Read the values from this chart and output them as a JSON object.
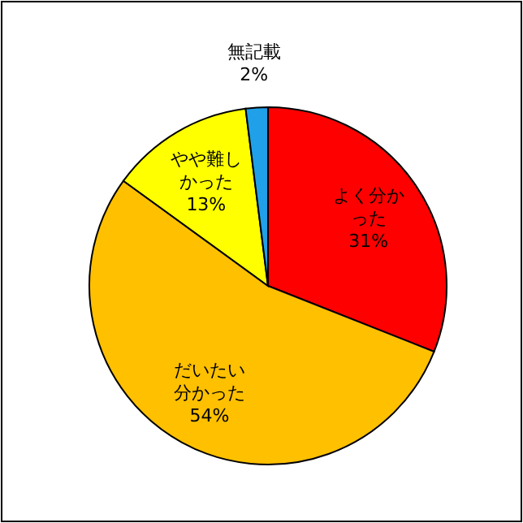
{
  "chart_data": {
    "type": "pie",
    "categories": [
      "よく分かった",
      "だいたい分かった",
      "やや難しかった",
      "無記載"
    ],
    "values": [
      31,
      54,
      13,
      2
    ],
    "colors": [
      "#ff0000",
      "#ffc000",
      "#ffff00",
      "#20a0e8"
    ],
    "value_labels": [
      "31%",
      "54%",
      "13%",
      "2%"
    ],
    "legend": false
  }
}
